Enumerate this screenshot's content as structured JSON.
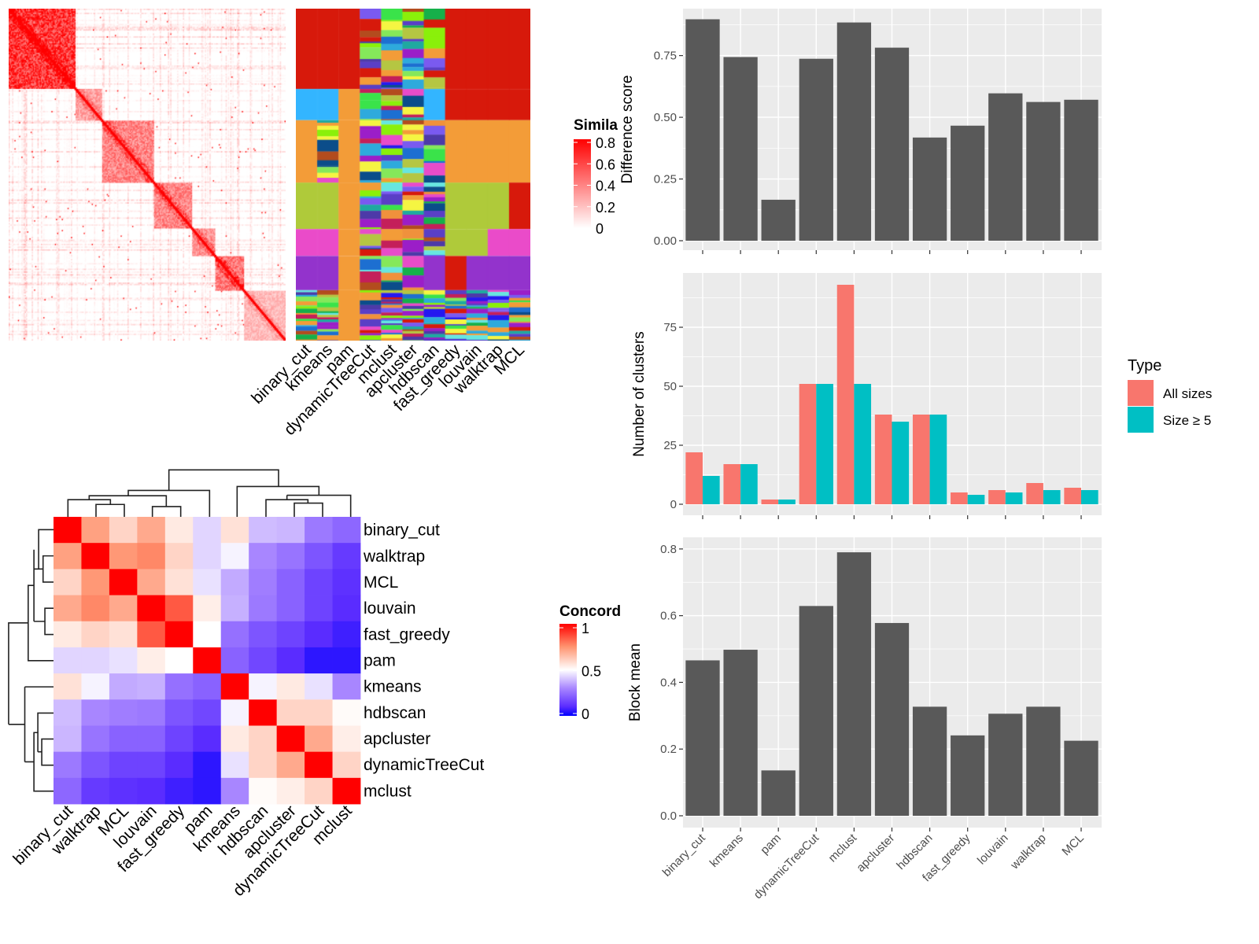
{
  "methods": [
    "binary_cut",
    "kmeans",
    "pam",
    "dynamicTreeCut",
    "mclust",
    "apcluster",
    "hdbscan",
    "fast_greedy",
    "louvain",
    "walktrap",
    "MCL"
  ],
  "similarity_heatmap": {
    "legend_title": "Simila",
    "legend_ticks": [
      "0.8",
      "0.6",
      "0.4",
      "0.2",
      "0"
    ],
    "color_low": "#ffffff",
    "color_high": "#ff0000",
    "column_labels": [
      "binary_cut",
      "kmeans",
      "pam",
      "dynamicTreeCut",
      "mclust",
      "apcluster",
      "hdbscan",
      "fast_greedy",
      "louvain",
      "walktrap",
      "MCL"
    ],
    "cluster_palette": {
      "R": "#d7190b",
      "S": "#33b5ff",
      "O": "#f39c38",
      "G": "#afca3a",
      "P": "#ea4bc9",
      "V": "#9333cc"
    },
    "column_segments": [
      [
        "R",
        "S",
        "O",
        "G",
        "P",
        "V",
        "M"
      ],
      [
        "R",
        "S",
        "M",
        "G",
        "P",
        "V",
        "M"
      ],
      [
        "R",
        "O",
        "O",
        "O",
        "O",
        "O",
        "O"
      ],
      [
        "M",
        "M",
        "M",
        "M",
        "M",
        "M",
        "M"
      ],
      [
        "M",
        "M",
        "M",
        "M",
        "M",
        "M",
        "M"
      ],
      [
        "M",
        "M",
        "M",
        "M",
        "M",
        "M",
        "M"
      ],
      [
        "M",
        "S",
        "M",
        "M",
        "M",
        "V",
        "M"
      ],
      [
        "R",
        "R",
        "O",
        "G",
        "G",
        "R",
        "M"
      ],
      [
        "R",
        "R",
        "O",
        "G",
        "G",
        "V",
        "M"
      ],
      [
        "R",
        "R",
        "O",
        "G",
        "P",
        "V",
        "M"
      ],
      [
        "R",
        "R",
        "O",
        "R",
        "P",
        "V",
        "M"
      ]
    ]
  },
  "concordance_heatmap": {
    "legend_title": "Concord",
    "legend_ticks": [
      "1",
      "0.5",
      "0"
    ],
    "color_stops": {
      "0": "#0000ff",
      "0.5": "#ffffff",
      "1": "#ff0000"
    },
    "order": [
      "binary_cut",
      "walktrap",
      "MCL",
      "louvain",
      "fast_greedy",
      "pam",
      "kmeans",
      "hdbscan",
      "apcluster",
      "dynamicTreeCut",
      "mclust"
    ],
    "matrix": [
      [
        1.0,
        0.72,
        0.6,
        0.7,
        0.55,
        0.43,
        0.57,
        0.39,
        0.38,
        0.27,
        0.23
      ],
      [
        0.72,
        1.0,
        0.74,
        0.77,
        0.6,
        0.43,
        0.48,
        0.3,
        0.26,
        0.19,
        0.13
      ],
      [
        0.6,
        0.74,
        1.0,
        0.7,
        0.57,
        0.45,
        0.36,
        0.28,
        0.22,
        0.15,
        0.11
      ],
      [
        0.7,
        0.77,
        0.7,
        1.0,
        0.85,
        0.54,
        0.37,
        0.27,
        0.22,
        0.15,
        0.1
      ],
      [
        0.55,
        0.6,
        0.57,
        0.85,
        1.0,
        0.5,
        0.25,
        0.19,
        0.15,
        0.1,
        0.07
      ],
      [
        0.43,
        0.43,
        0.45,
        0.54,
        0.5,
        1.0,
        0.22,
        0.16,
        0.1,
        0.05,
        0.05
      ],
      [
        0.57,
        0.48,
        0.36,
        0.37,
        0.25,
        0.22,
        1.0,
        0.48,
        0.55,
        0.45,
        0.3
      ],
      [
        0.39,
        0.3,
        0.28,
        0.27,
        0.19,
        0.16,
        0.48,
        1.0,
        0.6,
        0.6,
        0.51
      ],
      [
        0.38,
        0.26,
        0.22,
        0.22,
        0.15,
        0.1,
        0.55,
        0.6,
        1.0,
        0.7,
        0.54
      ],
      [
        0.27,
        0.19,
        0.15,
        0.15,
        0.1,
        0.05,
        0.45,
        0.6,
        0.7,
        1.0,
        0.6
      ],
      [
        0.23,
        0.13,
        0.11,
        0.1,
        0.07,
        0.05,
        0.3,
        0.51,
        0.54,
        0.6,
        1.0
      ]
    ]
  },
  "chart_data": [
    {
      "type": "bar",
      "categories": [
        "binary_cut",
        "kmeans",
        "pam",
        "dynamicTreeCut",
        "mclust",
        "apcluster",
        "hdbscan",
        "fast_greedy",
        "louvain",
        "walktrap",
        "MCL"
      ],
      "values": [
        0.897,
        0.744,
        0.166,
        0.737,
        0.884,
        0.782,
        0.418,
        0.466,
        0.597,
        0.562,
        0.571
      ],
      "xlabel": "",
      "ylabel": "Difference score",
      "ylim": [
        0,
        0.94
      ],
      "yticks": [
        "0.00",
        "0.25",
        "0.50",
        "0.75"
      ],
      "bar_color": "#595959",
      "panel_bg": "#ebebeb",
      "grid": true
    },
    {
      "type": "bar",
      "categories": [
        "binary_cut",
        "kmeans",
        "pam",
        "dynamicTreeCut",
        "mclust",
        "apcluster",
        "hdbscan",
        "fast_greedy",
        "louvain",
        "walktrap",
        "MCL"
      ],
      "series": [
        {
          "name": "All sizes",
          "color": "#f8766d",
          "values": [
            22,
            17,
            2,
            51,
            93,
            38,
            38,
            5,
            6,
            9,
            7
          ]
        },
        {
          "name": "Size ≥ 5",
          "color": "#00bfc4",
          "values": [
            12,
            17,
            2,
            51,
            51,
            35,
            38,
            4,
            5,
            6,
            6
          ]
        }
      ],
      "xlabel": "",
      "ylabel": "Number of clusters",
      "ylim": [
        0,
        98
      ],
      "yticks": [
        "0",
        "25",
        "50",
        "75"
      ],
      "legend_title": "Type",
      "legend_position": "right",
      "panel_bg": "#ebebeb",
      "grid": true
    },
    {
      "type": "bar",
      "categories": [
        "binary_cut",
        "kmeans",
        "pam",
        "dynamicTreeCut",
        "mclust",
        "apcluster",
        "hdbscan",
        "fast_greedy",
        "louvain",
        "walktrap",
        "MCL"
      ],
      "values": [
        0.466,
        0.498,
        0.136,
        0.629,
        0.79,
        0.578,
        0.327,
        0.241,
        0.306,
        0.327,
        0.225
      ],
      "xlabel": "",
      "ylabel": "Block mean",
      "ylim": [
        0,
        0.835
      ],
      "yticks": [
        "0.0",
        "0.2",
        "0.4",
        "0.6",
        "0.8"
      ],
      "bar_color": "#595959",
      "panel_bg": "#ebebeb",
      "grid": true
    }
  ]
}
